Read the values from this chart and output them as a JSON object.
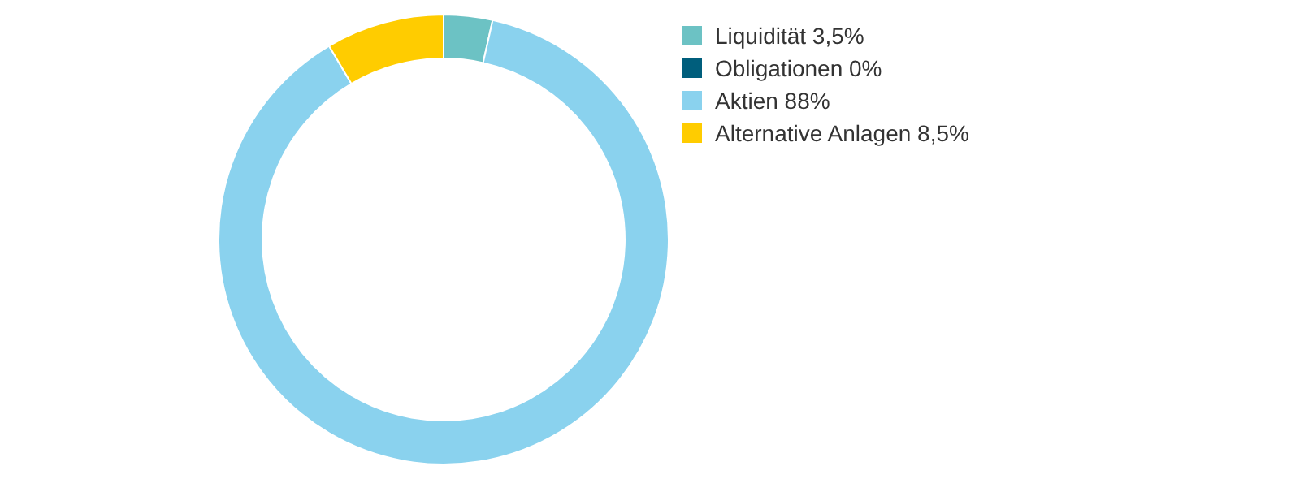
{
  "chart_data": {
    "type": "donut",
    "categories": [
      "Liquidität",
      "Obligationen",
      "Aktien",
      "Alternative Anlagen"
    ],
    "values": [
      3.5,
      0,
      88,
      8.5
    ],
    "value_labels": [
      "3,5%",
      "0%",
      "88%",
      "8,5%"
    ],
    "colors": [
      "#6cc2c4",
      "#005e7c",
      "#8ad2ee",
      "#ffcc00"
    ],
    "legend": "top right"
  }
}
